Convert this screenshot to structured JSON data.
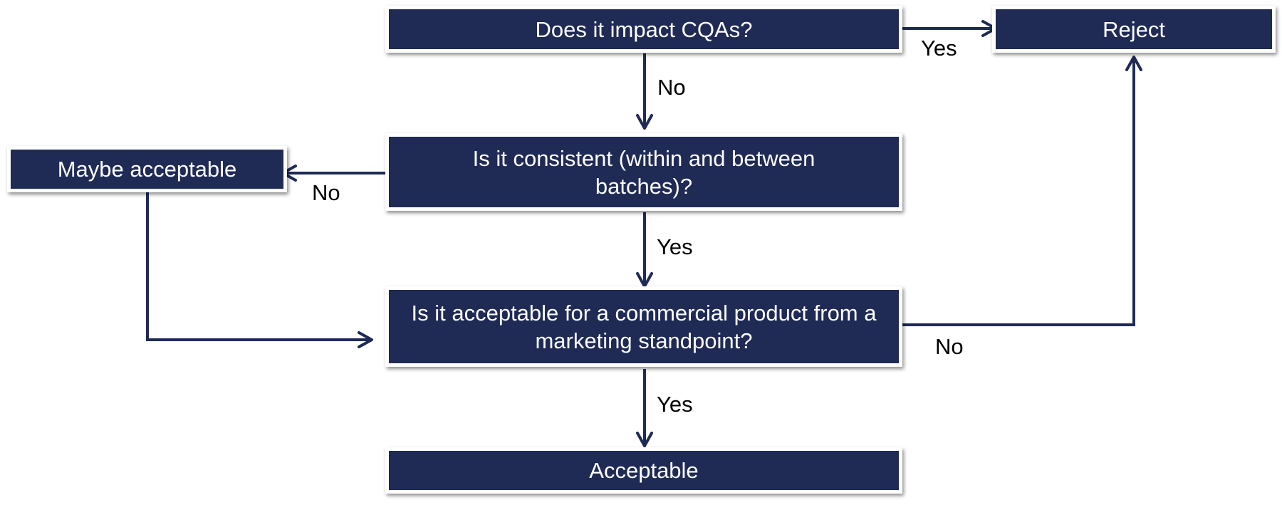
{
  "diagram": {
    "nodes": {
      "cqa_question": "Does it impact CQAs?",
      "reject": "Reject",
      "consistent_question": "Is it consistent (within and between batches)?",
      "maybe_acceptable": "Maybe acceptable",
      "marketing_question": "Is it acceptable for a commercial product from a marketing standpoint?",
      "acceptable": "Acceptable"
    },
    "edge_labels": {
      "cqa_yes": "Yes",
      "cqa_no": "No",
      "consistent_no": "No",
      "consistent_yes": "Yes",
      "marketing_no": "No",
      "marketing_yes": "Yes"
    },
    "colors": {
      "box_fill": "#1f2a55",
      "box_text": "#ffffff",
      "arrow": "#1f2a55"
    }
  }
}
